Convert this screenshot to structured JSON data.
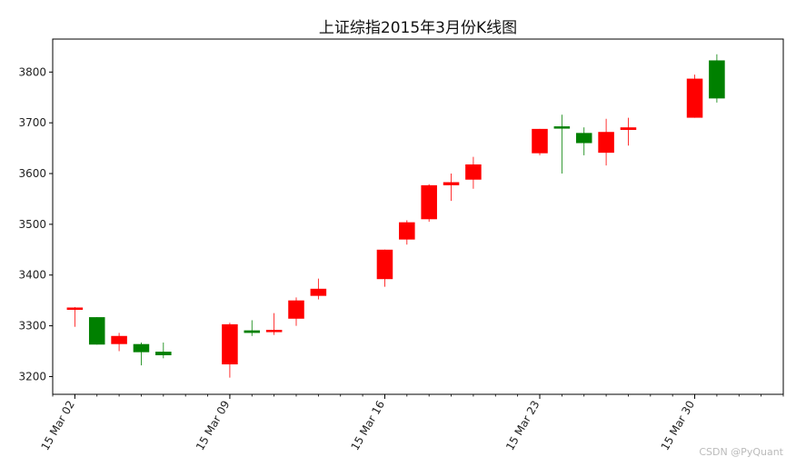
{
  "chart_data": {
    "type": "candlestick",
    "title": "上证综指2015年3月份K线图",
    "xlabel": "",
    "ylabel": "",
    "x_range": [
      "2015-03-01",
      "2015-04-03"
    ],
    "ylim": [
      3165,
      3865
    ],
    "y_ticks": [
      3200,
      3300,
      3400,
      3500,
      3600,
      3700,
      3800
    ],
    "x_major_ticks": [
      {
        "date": "2015-03-02",
        "label": "15 Mar 02"
      },
      {
        "date": "2015-03-09",
        "label": "15 Mar 09"
      },
      {
        "date": "2015-03-16",
        "label": "15 Mar 16"
      },
      {
        "date": "2015-03-23",
        "label": "15 Mar 23"
      },
      {
        "date": "2015-03-30",
        "label": "15 Mar 30"
      }
    ],
    "grid": false,
    "colors": {
      "up": "#ff0000",
      "down": "#008000"
    },
    "candles": [
      {
        "date": "2015-03-02",
        "open": 3332,
        "high": 3337,
        "low": 3298,
        "close": 3336
      },
      {
        "date": "2015-03-03",
        "open": 3317,
        "high": 3317,
        "low": 3263,
        "close": 3263
      },
      {
        "date": "2015-03-04",
        "open": 3264,
        "high": 3286,
        "low": 3250,
        "close": 3280
      },
      {
        "date": "2015-03-05",
        "open": 3264,
        "high": 3267,
        "low": 3222,
        "close": 3248
      },
      {
        "date": "2015-03-06",
        "open": 3249,
        "high": 3267,
        "low": 3236,
        "close": 3242
      },
      {
        "date": "2015-03-09",
        "open": 3224,
        "high": 3306,
        "low": 3198,
        "close": 3303
      },
      {
        "date": "2015-03-10",
        "open": 3291,
        "high": 3311,
        "low": 3280,
        "close": 3286
      },
      {
        "date": "2015-03-11",
        "open": 3289,
        "high": 3325,
        "low": 3282,
        "close": 3292
      },
      {
        "date": "2015-03-12",
        "open": 3314,
        "high": 3356,
        "low": 3300,
        "close": 3350
      },
      {
        "date": "2015-03-13",
        "open": 3359,
        "high": 3393,
        "low": 3352,
        "close": 3373
      },
      {
        "date": "2015-03-16",
        "open": 3392,
        "high": 3450,
        "low": 3377,
        "close": 3450
      },
      {
        "date": "2015-03-17",
        "open": 3470,
        "high": 3508,
        "low": 3460,
        "close": 3504
      },
      {
        "date": "2015-03-18",
        "open": 3510,
        "high": 3579,
        "low": 3505,
        "close": 3577
      },
      {
        "date": "2015-03-19",
        "open": 3577,
        "high": 3600,
        "low": 3546,
        "close": 3583
      },
      {
        "date": "2015-03-20",
        "open": 3588,
        "high": 3633,
        "low": 3570,
        "close": 3618
      },
      {
        "date": "2015-03-23",
        "open": 3640,
        "high": 3688,
        "low": 3636,
        "close": 3688
      },
      {
        "date": "2015-03-24",
        "open": 3693,
        "high": 3716,
        "low": 3600,
        "close": 3690
      },
      {
        "date": "2015-03-25",
        "open": 3680,
        "high": 3691,
        "low": 3636,
        "close": 3660
      },
      {
        "date": "2015-03-26",
        "open": 3641,
        "high": 3708,
        "low": 3616,
        "close": 3682
      },
      {
        "date": "2015-03-27",
        "open": 3686,
        "high": 3710,
        "low": 3655,
        "close": 3691
      },
      {
        "date": "2015-03-30",
        "open": 3710,
        "high": 3795,
        "low": 3710,
        "close": 3787
      },
      {
        "date": "2015-03-31",
        "open": 3823,
        "high": 3835,
        "low": 3740,
        "close": 3748
      }
    ]
  },
  "watermark": "CSDN @PyQuant"
}
